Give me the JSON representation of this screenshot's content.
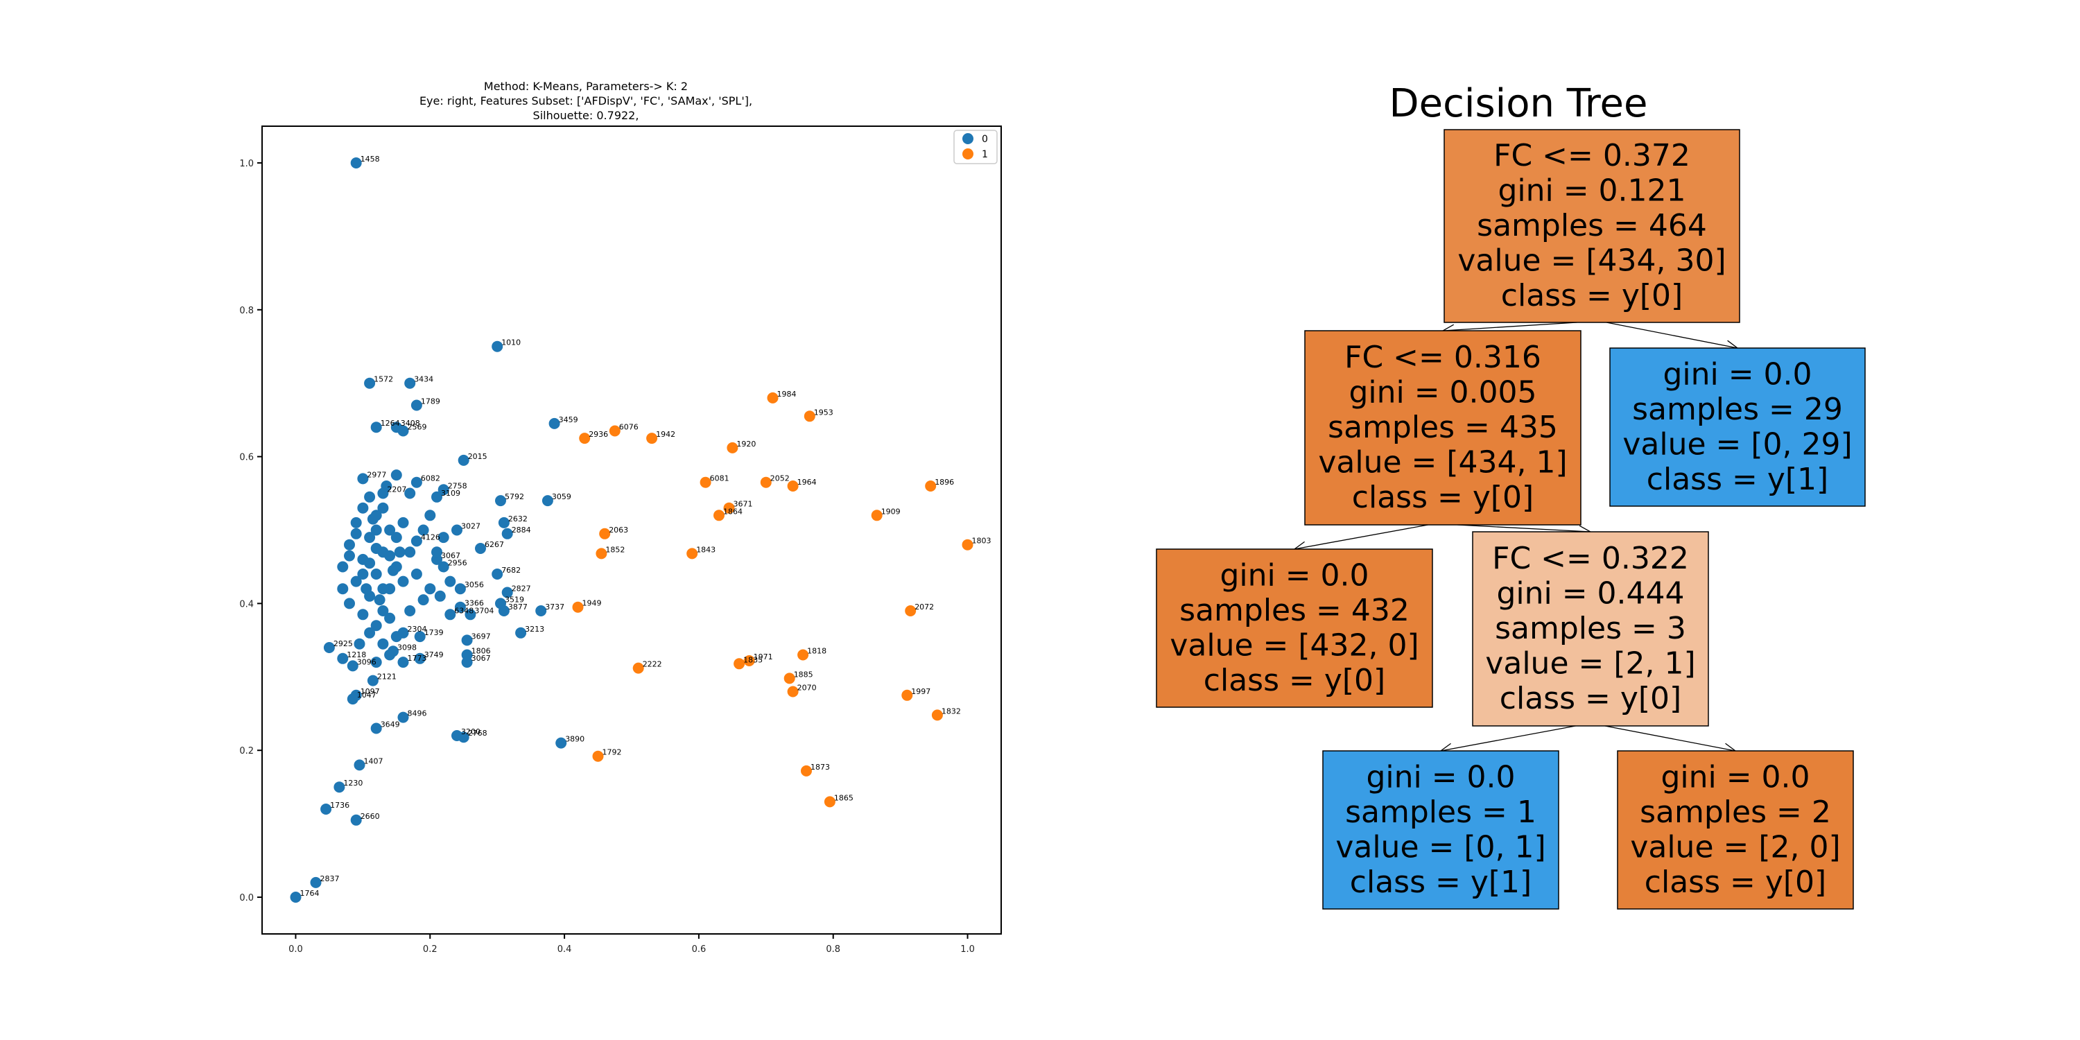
{
  "chart_data": [
    {
      "type": "scatter",
      "title_lines": [
        "Method: K-Means, Parameters-> K: 2",
        "Eye: right, Features Subset: ['AFDispV', 'FC', 'SAMax', 'SPL'],",
        "Silhouette: 0.7922,"
      ],
      "xlabel": "",
      "ylabel": "",
      "xlim": [
        -0.05,
        1.05
      ],
      "ylim": [
        -0.05,
        1.05
      ],
      "xticks": [
        "0.0",
        "0.2",
        "0.4",
        "0.6",
        "0.8",
        "1.0"
      ],
      "yticks": [
        "0.0",
        "0.2",
        "0.4",
        "0.6",
        "0.8",
        "1.0"
      ],
      "legend": {
        "placement": "top-right",
        "entries": [
          "0",
          "1"
        ]
      },
      "colors": {
        "0": "#1f77b4",
        "1": "#ff7f0e"
      },
      "series": [
        {
          "name": "0",
          "points": [
            {
              "x": 0.09,
              "y": 1.0,
              "label": "1458"
            },
            {
              "x": 0.3,
              "y": 0.75,
              "label": "1010"
            },
            {
              "x": 0.11,
              "y": 0.7,
              "label": "1572"
            },
            {
              "x": 0.17,
              "y": 0.7,
              "label": "3434"
            },
            {
              "x": 0.18,
              "y": 0.67,
              "label": "1789"
            },
            {
              "x": 0.12,
              "y": 0.64,
              "label": "1264"
            },
            {
              "x": 0.15,
              "y": 0.64,
              "label": "3408"
            },
            {
              "x": 0.16,
              "y": 0.635,
              "label": "2569"
            },
            {
              "x": 0.25,
              "y": 0.595,
              "label": "2015"
            },
            {
              "x": 0.385,
              "y": 0.645,
              "label": "3459"
            },
            {
              "x": 0.1,
              "y": 0.57,
              "label": "2977"
            },
            {
              "x": 0.18,
              "y": 0.565,
              "label": "6082"
            },
            {
              "x": 0.22,
              "y": 0.555,
              "label": "2758"
            },
            {
              "x": 0.13,
              "y": 0.55,
              "label": "2207"
            },
            {
              "x": 0.21,
              "y": 0.545,
              "label": "3109"
            },
            {
              "x": 0.305,
              "y": 0.54,
              "label": "5792"
            },
            {
              "x": 0.375,
              "y": 0.54,
              "label": "3059"
            },
            {
              "x": 0.31,
              "y": 0.51,
              "label": "2632"
            },
            {
              "x": 0.24,
              "y": 0.5,
              "label": "3027"
            },
            {
              "x": 0.315,
              "y": 0.495,
              "label": "2884"
            },
            {
              "x": 0.18,
              "y": 0.485,
              "label": "4126"
            },
            {
              "x": 0.275,
              "y": 0.475,
              "label": "6267"
            },
            {
              "x": 0.21,
              "y": 0.46,
              "label": "3067"
            },
            {
              "x": 0.22,
              "y": 0.45,
              "label": "2956"
            },
            {
              "x": 0.3,
              "y": 0.44,
              "label": "7682"
            },
            {
              "x": 0.245,
              "y": 0.42,
              "label": "3056"
            },
            {
              "x": 0.315,
              "y": 0.415,
              "label": "2827"
            },
            {
              "x": 0.305,
              "y": 0.4,
              "label": "3519"
            },
            {
              "x": 0.245,
              "y": 0.395,
              "label": "3366"
            },
            {
              "x": 0.31,
              "y": 0.39,
              "label": "3877"
            },
            {
              "x": 0.365,
              "y": 0.39,
              "label": "3737"
            },
            {
              "x": 0.23,
              "y": 0.385,
              "label": "6348"
            },
            {
              "x": 0.26,
              "y": 0.385,
              "label": "3704"
            },
            {
              "x": 0.16,
              "y": 0.36,
              "label": "2304"
            },
            {
              "x": 0.185,
              "y": 0.355,
              "label": "1739"
            },
            {
              "x": 0.335,
              "y": 0.36,
              "label": "3213"
            },
            {
              "x": 0.255,
              "y": 0.35,
              "label": "3697"
            },
            {
              "x": 0.05,
              "y": 0.34,
              "label": "2925"
            },
            {
              "x": 0.145,
              "y": 0.335,
              "label": "3098"
            },
            {
              "x": 0.07,
              "y": 0.325,
              "label": "1218"
            },
            {
              "x": 0.255,
              "y": 0.33,
              "label": "1806"
            },
            {
              "x": 0.185,
              "y": 0.325,
              "label": "3749"
            },
            {
              "x": 0.255,
              "y": 0.32,
              "label": "3067"
            },
            {
              "x": 0.085,
              "y": 0.315,
              "label": "3096"
            },
            {
              "x": 0.16,
              "y": 0.32,
              "label": "1773"
            },
            {
              "x": 0.115,
              "y": 0.295,
              "label": "2121"
            },
            {
              "x": 0.09,
              "y": 0.275,
              "label": "1097"
            },
            {
              "x": 0.085,
              "y": 0.27,
              "label": "1047"
            },
            {
              "x": 0.16,
              "y": 0.245,
              "label": "8496"
            },
            {
              "x": 0.12,
              "y": 0.23,
              "label": "3649"
            },
            {
              "x": 0.24,
              "y": 0.22,
              "label": "3200"
            },
            {
              "x": 0.25,
              "y": 0.218,
              "label": "2768"
            },
            {
              "x": 0.395,
              "y": 0.21,
              "label": "3890"
            },
            {
              "x": 0.095,
              "y": 0.18,
              "label": "1407"
            },
            {
              "x": 0.065,
              "y": 0.15,
              "label": "1230"
            },
            {
              "x": 0.045,
              "y": 0.12,
              "label": "1736"
            },
            {
              "x": 0.09,
              "y": 0.105,
              "label": "2660"
            },
            {
              "x": 0.03,
              "y": 0.02,
              "label": "2837"
            },
            {
              "x": 0.0,
              "y": 0.0,
              "label": "1764"
            },
            {
              "x": 0.1,
              "y": 0.53,
              "label": ""
            },
            {
              "x": 0.12,
              "y": 0.52,
              "label": ""
            },
            {
              "x": 0.09,
              "y": 0.51,
              "label": ""
            },
            {
              "x": 0.14,
              "y": 0.5,
              "label": ""
            },
            {
              "x": 0.11,
              "y": 0.49,
              "label": ""
            },
            {
              "x": 0.08,
              "y": 0.48,
              "label": ""
            },
            {
              "x": 0.13,
              "y": 0.47,
              "label": ""
            },
            {
              "x": 0.1,
              "y": 0.46,
              "label": ""
            },
            {
              "x": 0.15,
              "y": 0.45,
              "label": ""
            },
            {
              "x": 0.12,
              "y": 0.44,
              "label": ""
            },
            {
              "x": 0.09,
              "y": 0.43,
              "label": ""
            },
            {
              "x": 0.14,
              "y": 0.42,
              "label": ""
            },
            {
              "x": 0.11,
              "y": 0.41,
              "label": ""
            },
            {
              "x": 0.08,
              "y": 0.4,
              "label": ""
            },
            {
              "x": 0.13,
              "y": 0.39,
              "label": ""
            },
            {
              "x": 0.16,
              "y": 0.43,
              "label": ""
            },
            {
              "x": 0.17,
              "y": 0.47,
              "label": ""
            },
            {
              "x": 0.12,
              "y": 0.5,
              "label": ""
            },
            {
              "x": 0.1,
              "y": 0.44,
              "label": ""
            },
            {
              "x": 0.13,
              "y": 0.42,
              "label": ""
            },
            {
              "x": 0.11,
              "y": 0.455,
              "label": ""
            },
            {
              "x": 0.14,
              "y": 0.465,
              "label": ""
            },
            {
              "x": 0.12,
              "y": 0.475,
              "label": ""
            },
            {
              "x": 0.15,
              "y": 0.49,
              "label": ""
            },
            {
              "x": 0.09,
              "y": 0.495,
              "label": ""
            },
            {
              "x": 0.16,
              "y": 0.51,
              "label": ""
            },
            {
              "x": 0.13,
              "y": 0.53,
              "label": ""
            },
            {
              "x": 0.11,
              "y": 0.545,
              "label": ""
            },
            {
              "x": 0.17,
              "y": 0.55,
              "label": ""
            },
            {
              "x": 0.19,
              "y": 0.5,
              "label": ""
            },
            {
              "x": 0.18,
              "y": 0.44,
              "label": ""
            },
            {
              "x": 0.2,
              "y": 0.42,
              "label": ""
            },
            {
              "x": 0.19,
              "y": 0.405,
              "label": ""
            },
            {
              "x": 0.14,
              "y": 0.38,
              "label": ""
            },
            {
              "x": 0.12,
              "y": 0.37,
              "label": ""
            },
            {
              "x": 0.1,
              "y": 0.385,
              "label": ""
            },
            {
              "x": 0.07,
              "y": 0.42,
              "label": ""
            },
            {
              "x": 0.07,
              "y": 0.45,
              "label": ""
            },
            {
              "x": 0.08,
              "y": 0.465,
              "label": ""
            },
            {
              "x": 0.105,
              "y": 0.42,
              "label": ""
            },
            {
              "x": 0.125,
              "y": 0.405,
              "label": ""
            },
            {
              "x": 0.145,
              "y": 0.445,
              "label": ""
            },
            {
              "x": 0.155,
              "y": 0.47,
              "label": ""
            },
            {
              "x": 0.115,
              "y": 0.515,
              "label": ""
            },
            {
              "x": 0.135,
              "y": 0.56,
              "label": ""
            },
            {
              "x": 0.15,
              "y": 0.575,
              "label": ""
            },
            {
              "x": 0.21,
              "y": 0.47,
              "label": ""
            },
            {
              "x": 0.22,
              "y": 0.49,
              "label": ""
            },
            {
              "x": 0.2,
              "y": 0.52,
              "label": ""
            },
            {
              "x": 0.23,
              "y": 0.43,
              "label": ""
            },
            {
              "x": 0.215,
              "y": 0.41,
              "label": ""
            },
            {
              "x": 0.17,
              "y": 0.39,
              "label": ""
            },
            {
              "x": 0.15,
              "y": 0.355,
              "label": ""
            },
            {
              "x": 0.13,
              "y": 0.345,
              "label": ""
            },
            {
              "x": 0.11,
              "y": 0.36,
              "label": ""
            },
            {
              "x": 0.095,
              "y": 0.345,
              "label": ""
            },
            {
              "x": 0.14,
              "y": 0.33,
              "label": ""
            },
            {
              "x": 0.12,
              "y": 0.32,
              "label": ""
            }
          ]
        },
        {
          "name": "1",
          "points": [
            {
              "x": 0.71,
              "y": 0.68,
              "label": "1984"
            },
            {
              "x": 0.765,
              "y": 0.655,
              "label": "1953"
            },
            {
              "x": 0.475,
              "y": 0.635,
              "label": "6076"
            },
            {
              "x": 0.53,
              "y": 0.625,
              "label": "1942"
            },
            {
              "x": 0.43,
              "y": 0.625,
              "label": "2936"
            },
            {
              "x": 0.65,
              "y": 0.612,
              "label": "1920"
            },
            {
              "x": 0.61,
              "y": 0.565,
              "label": "6081"
            },
            {
              "x": 0.7,
              "y": 0.565,
              "label": "2052"
            },
            {
              "x": 0.74,
              "y": 0.56,
              "label": "1964"
            },
            {
              "x": 0.945,
              "y": 0.56,
              "label": "1896"
            },
            {
              "x": 0.645,
              "y": 0.53,
              "label": "3671"
            },
            {
              "x": 0.63,
              "y": 0.52,
              "label": "1864"
            },
            {
              "x": 0.865,
              "y": 0.52,
              "label": "1909"
            },
            {
              "x": 0.46,
              "y": 0.495,
              "label": "2063"
            },
            {
              "x": 1.0,
              "y": 0.48,
              "label": "1803"
            },
            {
              "x": 0.455,
              "y": 0.468,
              "label": "1852"
            },
            {
              "x": 0.59,
              "y": 0.468,
              "label": "1843"
            },
            {
              "x": 0.42,
              "y": 0.395,
              "label": "1949"
            },
            {
              "x": 0.915,
              "y": 0.39,
              "label": "2072"
            },
            {
              "x": 0.755,
              "y": 0.33,
              "label": "1818"
            },
            {
              "x": 0.675,
              "y": 0.322,
              "label": "1971"
            },
            {
              "x": 0.66,
              "y": 0.318,
              "label": "1835"
            },
            {
              "x": 0.51,
              "y": 0.312,
              "label": "2222"
            },
            {
              "x": 0.735,
              "y": 0.298,
              "label": "1885"
            },
            {
              "x": 0.74,
              "y": 0.28,
              "label": "2070"
            },
            {
              "x": 0.91,
              "y": 0.275,
              "label": "1997"
            },
            {
              "x": 0.955,
              "y": 0.248,
              "label": "1832"
            },
            {
              "x": 0.45,
              "y": 0.192,
              "label": "1792"
            },
            {
              "x": 0.76,
              "y": 0.172,
              "label": "1873"
            },
            {
              "x": 0.795,
              "y": 0.13,
              "label": "1865"
            }
          ]
        }
      ]
    },
    {
      "type": "decision-tree",
      "title": "Decision Tree",
      "colors": {
        "orange-dark": "#e58139",
        "orange-light": "#f2c09c",
        "blue": "#399de5",
        "orange-mid": "#e68743"
      },
      "nodes": [
        {
          "id": "n0",
          "lines": [
            "FC <= 0.372",
            "gini = 0.121",
            "samples = 464",
            "value = [434, 30]",
            "class = y[0]"
          ],
          "fill": "#e78a47"
        },
        {
          "id": "n1",
          "lines": [
            "FC <= 0.316",
            "gini = 0.005",
            "samples = 435",
            "value = [434, 1]",
            "class = y[0]"
          ],
          "fill": "#e5813a"
        },
        {
          "id": "n2",
          "lines": [
            "gini = 0.0",
            "samples = 29",
            "value = [0, 29]",
            "class = y[1]"
          ],
          "fill": "#399de5"
        },
        {
          "id": "n3",
          "lines": [
            "gini = 0.0",
            "samples = 432",
            "value = [432, 0]",
            "class = y[0]"
          ],
          "fill": "#e58139"
        },
        {
          "id": "n4",
          "lines": [
            "FC <= 0.322",
            "gini = 0.444",
            "samples = 3",
            "value = [2, 1]",
            "class = y[0]"
          ],
          "fill": "#f2c09c"
        },
        {
          "id": "n5",
          "lines": [
            "gini = 0.0",
            "samples = 1",
            "value = [0, 1]",
            "class = y[1]"
          ],
          "fill": "#399de5"
        },
        {
          "id": "n6",
          "lines": [
            "gini = 0.0",
            "samples = 2",
            "value = [2, 0]",
            "class = y[0]"
          ],
          "fill": "#e58139"
        }
      ],
      "edges": [
        [
          "n0",
          "n1"
        ],
        [
          "n0",
          "n2"
        ],
        [
          "n1",
          "n3"
        ],
        [
          "n1",
          "n4"
        ],
        [
          "n4",
          "n5"
        ],
        [
          "n4",
          "n6"
        ]
      ]
    }
  ]
}
